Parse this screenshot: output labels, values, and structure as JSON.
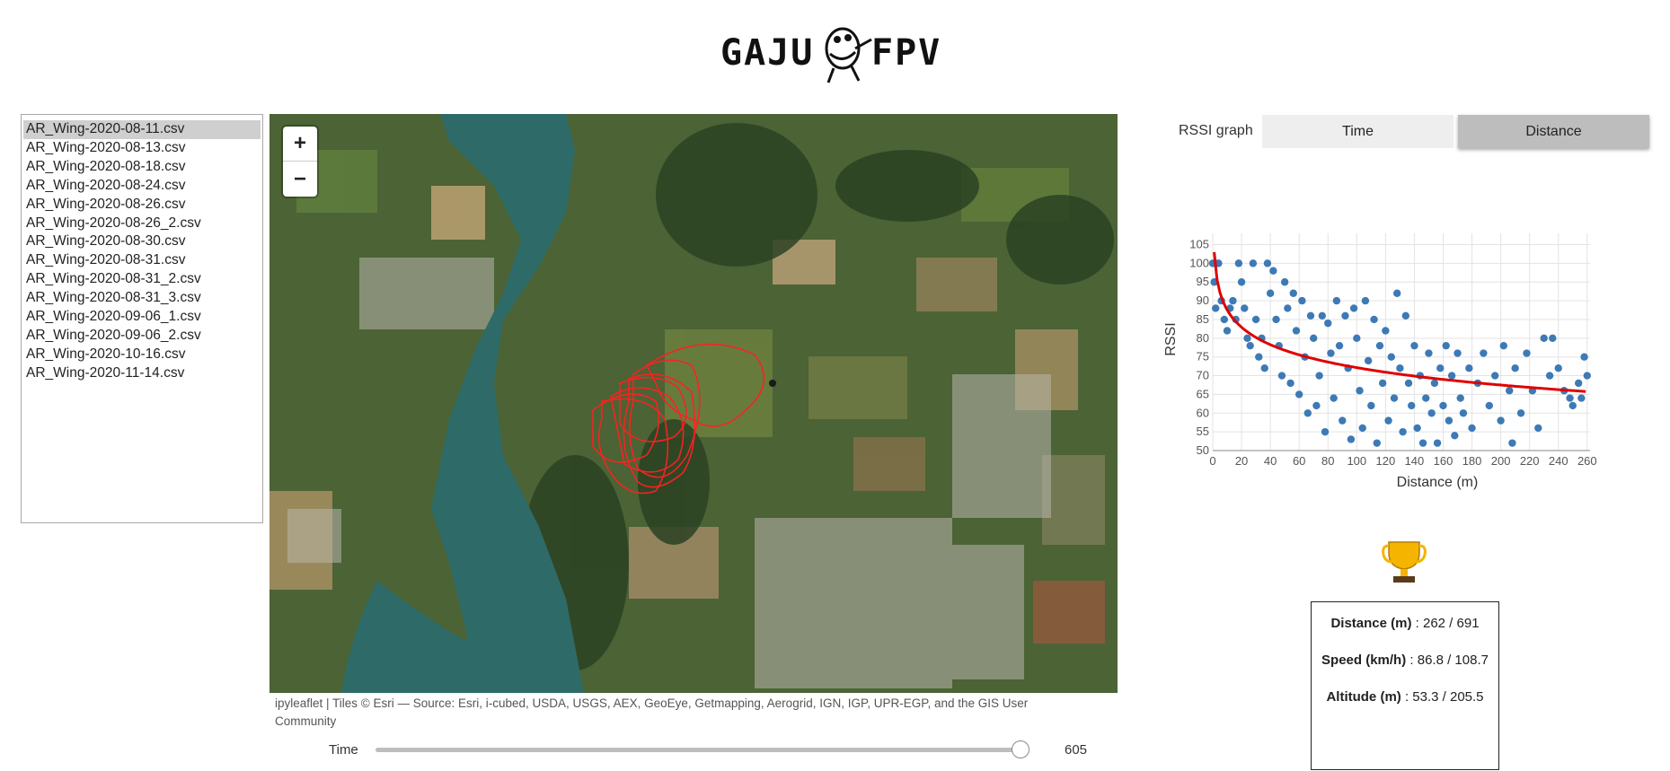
{
  "logo": {
    "text_left": "GAJU",
    "text_right": "FPV"
  },
  "files": {
    "selected_index": 0,
    "items": [
      "AR_Wing-2020-08-11.csv",
      "AR_Wing-2020-08-13.csv",
      "AR_Wing-2020-08-18.csv",
      "AR_Wing-2020-08-24.csv",
      "AR_Wing-2020-08-26.csv",
      "AR_Wing-2020-08-26_2.csv",
      "AR_Wing-2020-08-30.csv",
      "AR_Wing-2020-08-31.csv",
      "AR_Wing-2020-08-31_2.csv",
      "AR_Wing-2020-08-31_3.csv",
      "AR_Wing-2020-09-06_1.csv",
      "AR_Wing-2020-09-06_2.csv",
      "AR_Wing-2020-10-16.csv",
      "AR_Wing-2020-11-14.csv"
    ]
  },
  "map": {
    "zoom_in": "+",
    "zoom_out": "−",
    "attribution": "ipyleaflet | Tiles © Esri — Source: Esri, i-cubed, USDA, USGS, AEX, GeoEye, Getmapping, Aerogrid, IGN, IGP, UPR-EGP, and the GIS User Community",
    "flight_path_color": "#ff2020"
  },
  "time_slider": {
    "label": "Time",
    "value": "605",
    "fraction": 0.99
  },
  "rssi_toggle": {
    "label": "RSSI graph",
    "options": [
      "Time",
      "Distance"
    ],
    "active": "Distance"
  },
  "chart_data": {
    "type": "scatter",
    "xlabel": "Distance (m)",
    "ylabel": "RSSI",
    "xlim": [
      0,
      262
    ],
    "ylim": [
      50,
      108
    ],
    "xticks": [
      0,
      20,
      40,
      60,
      80,
      100,
      120,
      140,
      160,
      180,
      200,
      220,
      240,
      260
    ],
    "yticks": [
      50,
      55,
      60,
      65,
      70,
      75,
      80,
      85,
      90,
      95,
      100,
      105
    ],
    "grid": true,
    "point_color": "#3d7ab5",
    "trend_color": "#e00000",
    "points": [
      [
        0,
        100
      ],
      [
        2,
        100
      ],
      [
        4,
        100
      ],
      [
        1,
        95
      ],
      [
        2,
        88
      ],
      [
        6,
        90
      ],
      [
        8,
        85
      ],
      [
        10,
        82
      ],
      [
        12,
        88
      ],
      [
        14,
        90
      ],
      [
        16,
        85
      ],
      [
        18,
        100
      ],
      [
        20,
        95
      ],
      [
        22,
        88
      ],
      [
        24,
        80
      ],
      [
        26,
        78
      ],
      [
        28,
        100
      ],
      [
        30,
        85
      ],
      [
        32,
        75
      ],
      [
        34,
        80
      ],
      [
        36,
        72
      ],
      [
        38,
        100
      ],
      [
        40,
        92
      ],
      [
        42,
        98
      ],
      [
        44,
        85
      ],
      [
        46,
        78
      ],
      [
        48,
        70
      ],
      [
        50,
        95
      ],
      [
        52,
        88
      ],
      [
        54,
        68
      ],
      [
        56,
        92
      ],
      [
        58,
        82
      ],
      [
        60,
        65
      ],
      [
        62,
        90
      ],
      [
        64,
        75
      ],
      [
        66,
        60
      ],
      [
        68,
        86
      ],
      [
        70,
        80
      ],
      [
        72,
        62
      ],
      [
        74,
        70
      ],
      [
        76,
        86
      ],
      [
        78,
        55
      ],
      [
        80,
        84
      ],
      [
        82,
        76
      ],
      [
        84,
        64
      ],
      [
        86,
        90
      ],
      [
        88,
        78
      ],
      [
        90,
        58
      ],
      [
        92,
        86
      ],
      [
        94,
        72
      ],
      [
        96,
        53
      ],
      [
        98,
        88
      ],
      [
        100,
        80
      ],
      [
        102,
        66
      ],
      [
        104,
        56
      ],
      [
        106,
        90
      ],
      [
        108,
        74
      ],
      [
        110,
        62
      ],
      [
        112,
        85
      ],
      [
        114,
        52
      ],
      [
        116,
        78
      ],
      [
        118,
        68
      ],
      [
        120,
        82
      ],
      [
        122,
        58
      ],
      [
        124,
        75
      ],
      [
        126,
        64
      ],
      [
        128,
        92
      ],
      [
        130,
        72
      ],
      [
        132,
        55
      ],
      [
        134,
        86
      ],
      [
        136,
        68
      ],
      [
        138,
        62
      ],
      [
        140,
        78
      ],
      [
        142,
        56
      ],
      [
        144,
        70
      ],
      [
        146,
        52
      ],
      [
        148,
        64
      ],
      [
        150,
        76
      ],
      [
        152,
        60
      ],
      [
        154,
        68
      ],
      [
        156,
        52
      ],
      [
        158,
        72
      ],
      [
        160,
        62
      ],
      [
        162,
        78
      ],
      [
        164,
        58
      ],
      [
        166,
        70
      ],
      [
        168,
        54
      ],
      [
        170,
        76
      ],
      [
        172,
        64
      ],
      [
        174,
        60
      ],
      [
        178,
        72
      ],
      [
        180,
        56
      ],
      [
        184,
        68
      ],
      [
        188,
        76
      ],
      [
        192,
        62
      ],
      [
        196,
        70
      ],
      [
        200,
        58
      ],
      [
        202,
        78
      ],
      [
        206,
        66
      ],
      [
        208,
        52
      ],
      [
        210,
        72
      ],
      [
        214,
        60
      ],
      [
        218,
        76
      ],
      [
        222,
        66
      ],
      [
        226,
        56
      ],
      [
        230,
        80
      ],
      [
        234,
        70
      ],
      [
        236,
        80
      ],
      [
        240,
        72
      ],
      [
        244,
        66
      ],
      [
        248,
        64
      ],
      [
        250,
        62
      ],
      [
        254,
        68
      ],
      [
        256,
        64
      ],
      [
        258,
        75
      ],
      [
        260,
        70
      ]
    ]
  },
  "stats": {
    "distance_label": "Distance (m)",
    "distance_value": " : 262 / 691",
    "speed_label": "Speed (km/h)",
    "speed_value": " : 86.8 / 108.7",
    "altitude_label": "Altitude (m)",
    "altitude_value": " : 53.3 / 205.5"
  }
}
